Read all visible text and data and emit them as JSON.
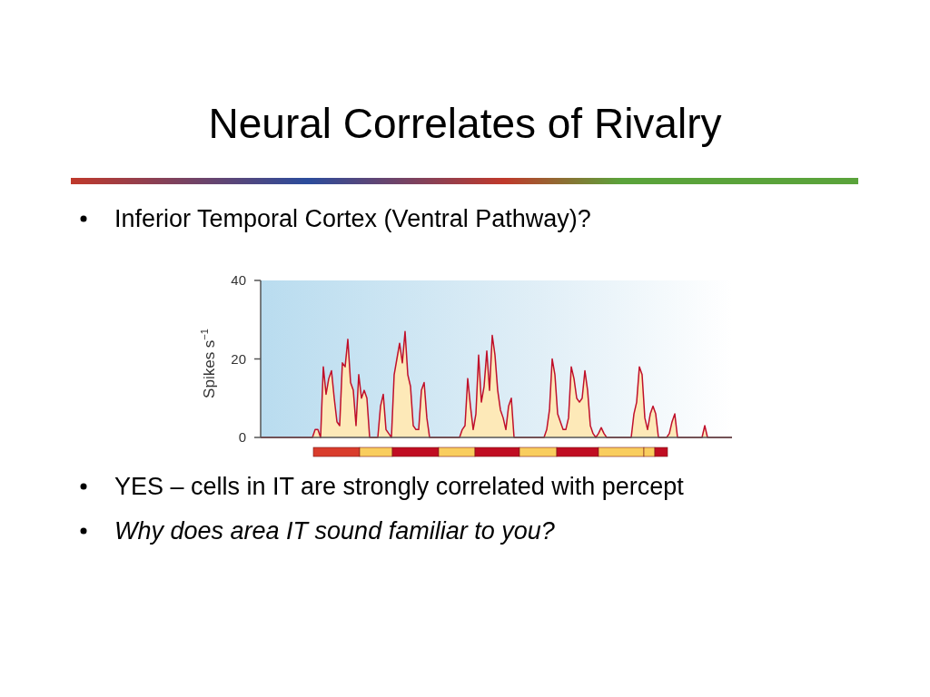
{
  "chart_data": {
    "type": "area",
    "title": "Neural Correlates of Rivalry",
    "ylabel": "Spikes s$^{−1}$",
    "annotations": [
      "Inferior Temporal Cortex (Ventral Pathway)?",
      "YES – cells in IT are strongly correlated with percept",
      "Why does area IT sound familiar to you?"
    ],
    "categories": [
      null,
      null,
      null,
      null,
      null,
      null,
      null,
      null,
      null,
      null,
      null,
      null,
      null,
      null,
      null,
      null,
      null,
      null,
      null,
      null,
      null,
      null,
      null,
      null,
      null,
      null,
      null,
      null,
      null,
      null,
      null,
      null,
      null,
      null,
      null,
      null,
      null,
      null,
      null,
      null,
      null,
      null,
      null,
      null,
      null,
      null,
      null,
      null,
      null,
      null,
      null,
      null,
      null,
      null,
      null,
      null,
      null,
      null,
      null,
      null,
      null,
      null,
      null,
      null,
      null,
      null,
      null,
      null,
      null,
      null,
      null,
      null,
      null,
      null,
      null,
      null,
      null,
      null,
      null,
      null,
      null,
      null,
      null,
      null,
      null,
      null,
      null,
      null,
      null,
      null,
      null,
      null,
      null,
      null,
      null,
      null,
      null,
      null,
      null,
      null,
      null,
      null,
      null,
      null,
      null,
      null,
      null,
      null,
      null,
      null,
      null,
      null,
      null,
      null,
      null,
      null,
      null,
      null,
      null,
      null,
      null,
      null,
      null,
      null,
      null,
      null,
      null,
      null,
      null,
      null,
      null,
      null,
      null,
      null,
      null,
      null,
      null,
      null,
      null,
      null,
      null,
      null,
      null,
      null,
      null,
      null,
      null,
      null,
      null,
      null,
      null,
      null,
      null,
      null,
      null,
      null,
      null,
      null,
      null,
      null,
      null,
      null,
      null,
      null,
      null,
      null,
      null,
      null,
      null,
      null,
      null,
      null,
      null,
      null
    ],
    "series": [
      {
        "color": "#c0102a",
        "values": [
          0,
          0,
          0,
          0,
          0,
          0,
          0,
          0,
          0,
          0,
          0,
          0,
          0,
          0,
          0,
          0,
          0,
          0,
          0,
          0,
          2,
          2,
          0,
          18,
          11,
          15,
          17,
          10,
          4,
          3,
          19,
          18,
          25,
          14,
          12,
          3,
          16,
          10,
          12,
          10,
          0,
          0,
          0,
          0,
          8,
          11,
          2,
          1,
          0,
          16,
          20,
          24,
          19,
          27,
          16,
          13,
          3,
          2,
          2,
          12,
          14,
          5,
          0,
          0,
          0,
          0,
          0,
          0,
          0,
          0,
          0,
          0,
          0,
          0,
          2,
          3,
          15,
          8,
          2,
          6,
          21,
          9,
          13,
          22,
          12,
          26,
          21,
          12,
          7,
          5,
          2,
          8,
          10,
          0,
          0,
          0,
          0,
          0,
          0,
          0,
          0,
          0,
          0,
          0,
          0,
          2,
          7,
          20,
          16,
          6,
          4,
          2,
          2,
          5,
          18,
          15,
          10,
          9,
          10,
          17,
          12,
          3,
          1,
          0,
          1,
          2.5,
          1,
          0,
          0,
          0,
          0,
          0,
          0,
          0,
          0,
          0,
          0,
          6,
          9,
          18,
          16,
          5,
          2,
          6,
          8,
          6,
          0,
          0,
          0,
          0,
          1,
          4,
          6,
          0,
          0,
          0,
          0,
          0,
          0,
          0,
          0,
          0,
          0,
          3,
          0,
          0,
          0,
          0,
          0,
          0,
          0,
          0,
          0,
          0
        ]
      }
    ],
    "ylim": [
      0,
      40
    ],
    "yticks": [
      0,
      20,
      40
    ],
    "tick_labels": "y",
    "grid": false
  }
}
